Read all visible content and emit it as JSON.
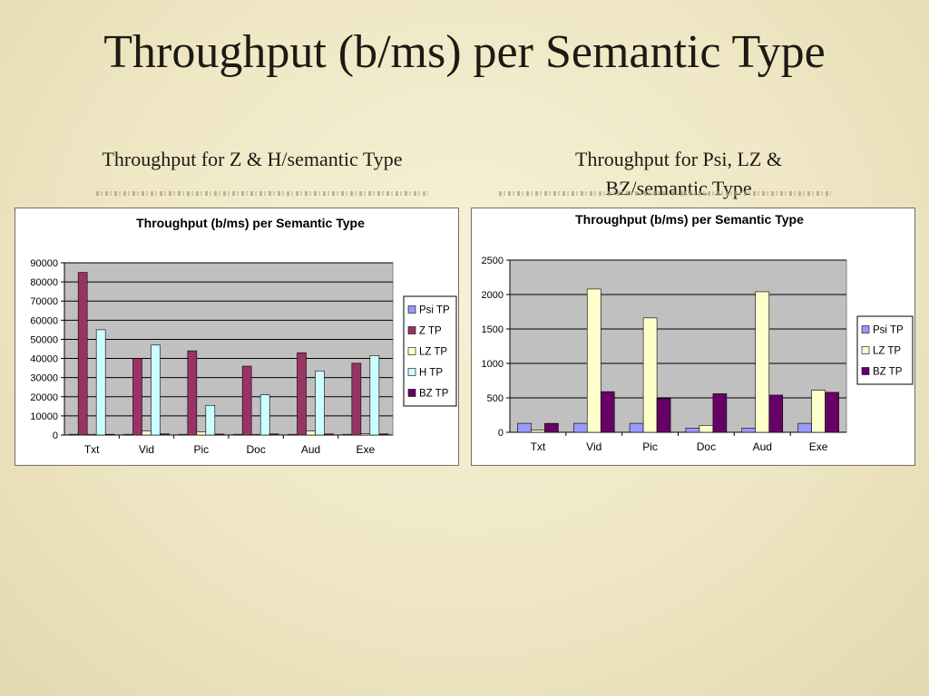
{
  "slide": {
    "title": "Throughput (b/ms) per Semantic Type",
    "subtitle_left": "Throughput for Z & H/semantic Type",
    "subtitle_right": "Throughput for Psi, LZ & BZ/semantic Type"
  },
  "chart_data": [
    {
      "type": "bar",
      "title": "Throughput (b/ms) per Semantic Type",
      "xlabel": "",
      "ylabel": "",
      "categories": [
        "Txt",
        "Vid",
        "Pic",
        "Doc",
        "Aud",
        "Exe"
      ],
      "ylim": [
        0,
        90000
      ],
      "yticks": [
        0,
        10000,
        20000,
        30000,
        40000,
        50000,
        60000,
        70000,
        80000,
        90000
      ],
      "grid": true,
      "legend_position": "right",
      "series": [
        {
          "name": "Psi TP",
          "color": "#9999ff",
          "values": [
            150,
            120,
            120,
            60,
            60,
            120
          ]
        },
        {
          "name": "Z TP",
          "color": "#993366",
          "values": [
            85000,
            40000,
            44000,
            36000,
            43000,
            37500
          ]
        },
        {
          "name": "LZ TP",
          "color": "#ffffcc",
          "values": [
            60,
            2100,
            1650,
            100,
            2050,
            620
          ]
        },
        {
          "name": "H TP",
          "color": "#ccffff",
          "values": [
            55000,
            47000,
            15500,
            21000,
            33500,
            41500
          ]
        },
        {
          "name": "BZ TP",
          "color": "#660066",
          "values": [
            130,
            590,
            490,
            560,
            550,
            590
          ]
        }
      ]
    },
    {
      "type": "bar",
      "title": "Throughput (b/ms) per Semantic Type",
      "xlabel": "",
      "ylabel": "",
      "categories": [
        "Txt",
        "Vid",
        "Pic",
        "Doc",
        "Aud",
        "Exe"
      ],
      "ylim": [
        0,
        2500
      ],
      "yticks": [
        0,
        500,
        1000,
        1500,
        2000,
        2500
      ],
      "grid": true,
      "legend_position": "right",
      "series": [
        {
          "name": "Psi TP",
          "color": "#9999ff",
          "values": [
            130,
            130,
            130,
            60,
            60,
            130
          ]
        },
        {
          "name": "LZ TP",
          "color": "#ffffcc",
          "values": [
            30,
            2080,
            1660,
            100,
            2040,
            610
          ]
        },
        {
          "name": "BZ TP",
          "color": "#660066",
          "values": [
            130,
            590,
            490,
            560,
            540,
            580
          ]
        }
      ]
    }
  ]
}
